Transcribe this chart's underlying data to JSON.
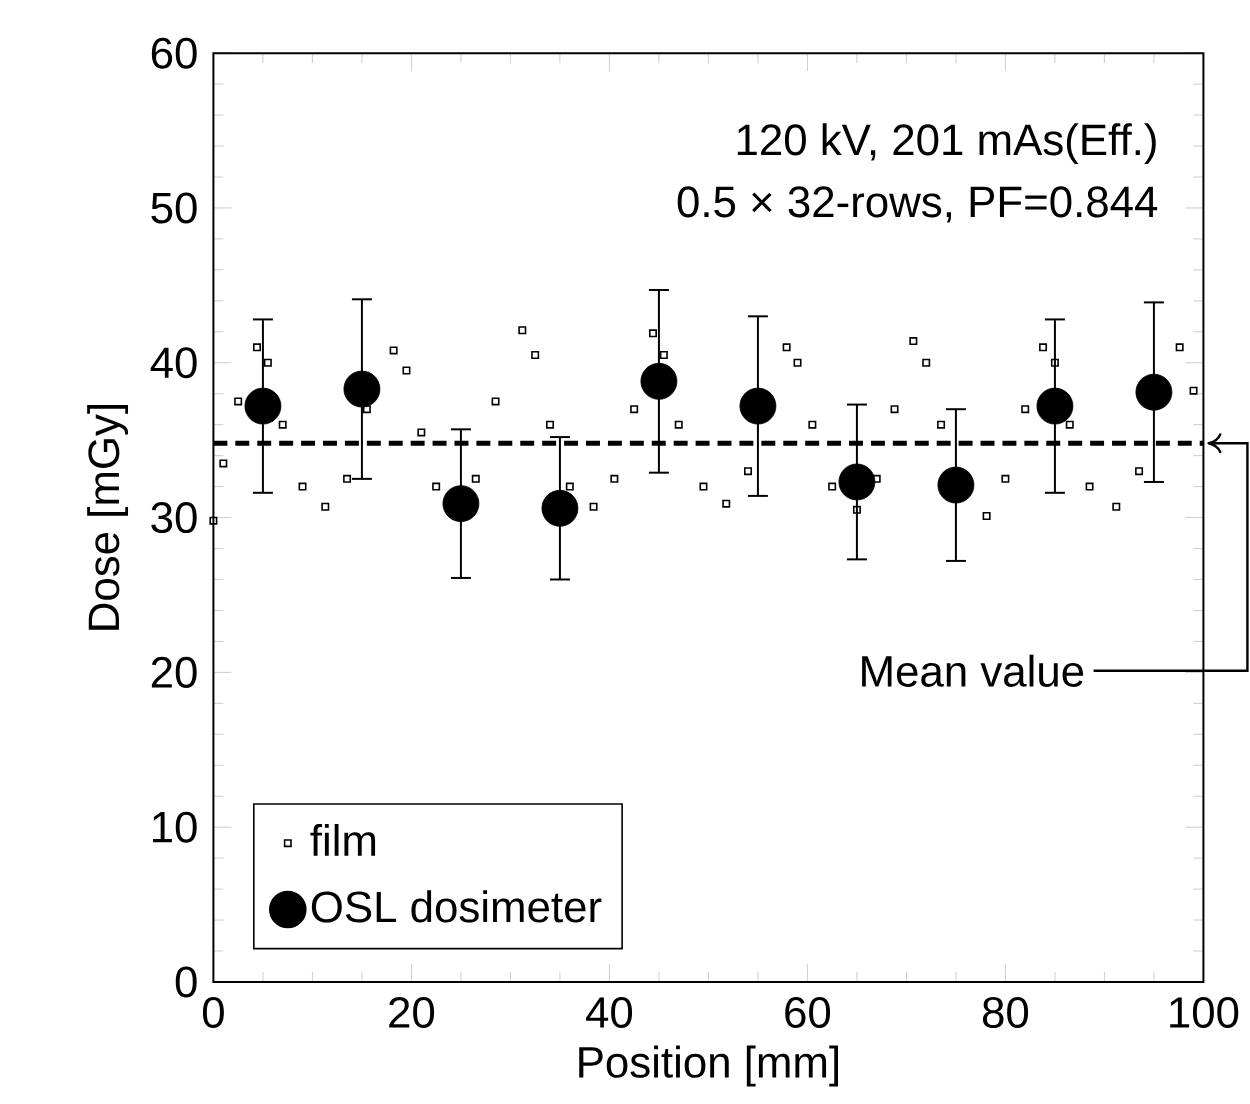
{
  "chart_data": {
    "type": "scatter",
    "xlabel": "Position [mm]",
    "ylabel": "Dose [mGy]",
    "xlim": [
      0,
      100
    ],
    "xticks": [
      0,
      20,
      40,
      60,
      80,
      100
    ],
    "ylim": [
      0,
      60
    ],
    "yticks": [
      0,
      10,
      20,
      30,
      40,
      50,
      60
    ],
    "annotations": [
      "120 kV, 201 mAs(Eff.)",
      "0.5 × 32-rows, PF=0.844"
    ],
    "ref_lines": [
      {
        "axis": "y",
        "value": 34.8,
        "label": "Mean value",
        "line_style": "dashed",
        "color": "#000000"
      }
    ],
    "legend": "bottom left",
    "grid": false,
    "series": [
      {
        "name": "film",
        "marker": "square",
        "color": "#000000",
        "x": [
          0,
          1,
          2.5,
          4.4,
          5.5,
          7,
          9,
          11.3,
          13.5,
          15.5,
          18.2,
          19.5,
          21,
          22.5,
          26.5,
          28.5,
          31.2,
          32.5,
          34,
          36,
          38.4,
          40.5,
          42.5,
          44.4,
          45.5,
          47,
          49.5,
          51.8,
          54,
          57.9,
          59,
          60.5,
          62.5,
          65,
          67,
          68.8,
          70.7,
          72,
          73.5,
          78.1,
          80,
          82,
          83.8,
          85,
          86.5,
          88.5,
          91.2,
          93.5,
          97.6,
          99
        ],
        "values": [
          29.8,
          33.5,
          37.5,
          41.0,
          40.0,
          36.0,
          32.0,
          30.7,
          32.5,
          37.0,
          40.8,
          39.5,
          35.5,
          32.0,
          32.5,
          37.5,
          42.1,
          40.5,
          36.0,
          32.0,
          30.7,
          32.5,
          37.0,
          41.9,
          40.5,
          36.0,
          32.0,
          30.9,
          33.0,
          41.0,
          40.0,
          36.0,
          32.0,
          30.5,
          32.5,
          37.0,
          41.4,
          40.0,
          36.0,
          30.1,
          32.5,
          37.0,
          41.0,
          40.0,
          36.0,
          32.0,
          30.7,
          33.0,
          41.0,
          38.2
        ]
      },
      {
        "name": "OSL dosimeter",
        "marker": "circle",
        "color": "#000000",
        "x": [
          5,
          15,
          25,
          35,
          45,
          55,
          65,
          75,
          85,
          95
        ],
        "values": [
          37.2,
          38.3,
          30.9,
          30.6,
          38.8,
          37.2,
          32.3,
          32.1,
          37.2,
          38.1
        ],
        "errors": [
          5.6,
          5.8,
          4.8,
          4.6,
          5.9,
          5.8,
          5.0,
          4.9,
          5.6,
          5.8
        ]
      }
    ]
  }
}
